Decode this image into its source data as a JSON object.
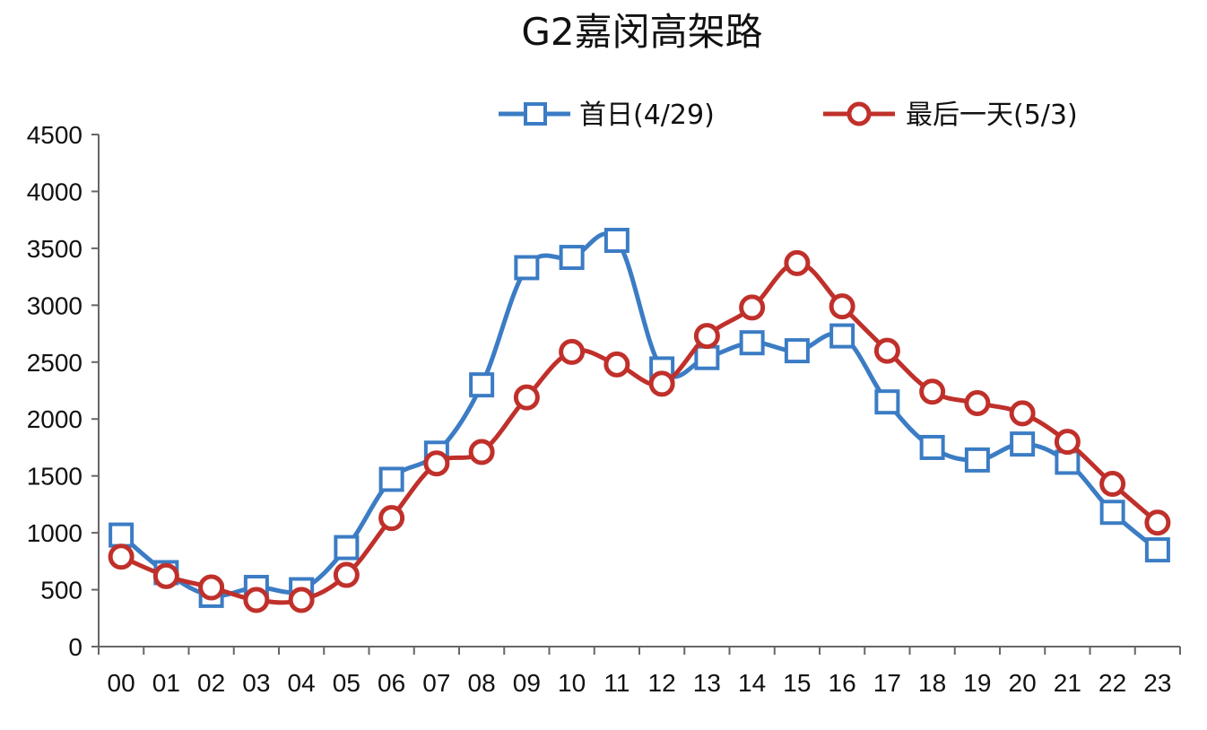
{
  "chart_data": {
    "type": "line",
    "title": "G2嘉闵高架路",
    "categories": [
      "00",
      "01",
      "02",
      "03",
      "04",
      "05",
      "06",
      "07",
      "08",
      "09",
      "10",
      "11",
      "12",
      "13",
      "14",
      "15",
      "16",
      "17",
      "18",
      "19",
      "20",
      "21",
      "22",
      "23"
    ],
    "ylim": [
      0,
      4500
    ],
    "yticks": [
      "0",
      "500",
      "1000",
      "1500",
      "2000",
      "2500",
      "3000",
      "3500",
      "4000",
      "4500"
    ],
    "grid": false,
    "legend_position": "top-right",
    "series": [
      {
        "name": "首日(4/29)",
        "color": "#3b7cc4",
        "marker": "square",
        "values": [
          980,
          650,
          450,
          520,
          500,
          870,
          1470,
          1700,
          2300,
          3330,
          3420,
          3570,
          2440,
          2540,
          2670,
          2600,
          2730,
          2150,
          1750,
          1640,
          1780,
          1620,
          1180,
          850
        ]
      },
      {
        "name": "最后一天(5/3)",
        "color": "#c0302b",
        "marker": "circle",
        "values": [
          790,
          620,
          520,
          410,
          410,
          630,
          1130,
          1610,
          1710,
          2190,
          2590,
          2480,
          2310,
          2730,
          2980,
          3370,
          2990,
          2600,
          2240,
          2140,
          2050,
          1800,
          1430,
          1090
        ]
      }
    ]
  }
}
